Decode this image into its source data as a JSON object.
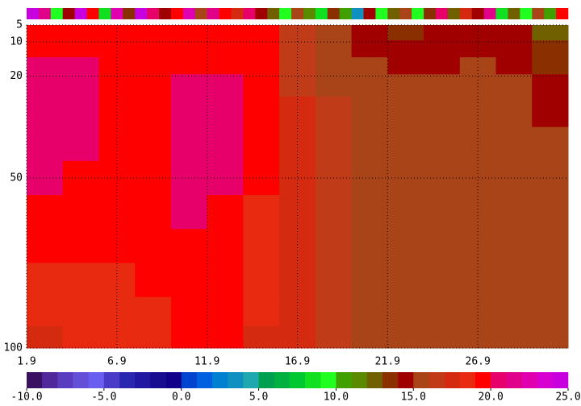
{
  "chart_data": {
    "type": "contour",
    "x": [
      2.9,
      4.9,
      6.9,
      8.9,
      10.9,
      12.9,
      14.9,
      16.9,
      18.9,
      20.9,
      22.9,
      24.9,
      26.9,
      28.9,
      30.9
    ],
    "y": [
      7,
      12,
      17,
      22,
      30,
      40,
      50,
      60,
      70,
      80,
      90,
      97
    ],
    "z": [
      [
        19.5,
        19.5,
        19.5,
        19.4,
        19.4,
        19.3,
        19.2,
        16.5,
        15.5,
        14.5,
        13.8,
        14.2,
        14.6,
        14.0,
        12.5
      ],
      [
        19.6,
        19.6,
        19.5,
        19.4,
        19.4,
        19.3,
        19.2,
        16.4,
        15.6,
        14.6,
        14.2,
        14.4,
        14.8,
        14.3,
        13.2
      ],
      [
        20.2,
        20.1,
        19.6,
        19.5,
        19.6,
        19.5,
        19.3,
        16.6,
        15.7,
        15.2,
        14.7,
        14.8,
        15.1,
        14.6,
        13.8
      ],
      [
        20.3,
        20.2,
        19.7,
        19.6,
        20.1,
        20.2,
        19.3,
        16.8,
        15.8,
        15.4,
        15.2,
        15.3,
        15.4,
        15.2,
        14.3
      ],
      [
        20.4,
        20.2,
        19.6,
        19.6,
        20.3,
        20.3,
        19.2,
        17.1,
        16.2,
        15.6,
        15.5,
        15.6,
        15.6,
        15.4,
        14.6
      ],
      [
        20.3,
        20.1,
        19.5,
        19.6,
        20.4,
        20.2,
        19.1,
        17.2,
        16.3,
        15.7,
        15.6,
        15.6,
        15.7,
        15.6,
        15.3
      ],
      [
        20.1,
        19.8,
        19.4,
        19.6,
        20.3,
        20.1,
        19.0,
        17.3,
        16.4,
        15.6,
        15.5,
        15.6,
        15.8,
        15.6,
        15.4
      ],
      [
        19.4,
        19.4,
        19.3,
        19.5,
        20.2,
        19.6,
        18.4,
        17.2,
        16.4,
        15.6,
        15.5,
        15.5,
        15.6,
        15.5,
        15.3
      ],
      [
        19.1,
        19.2,
        19.2,
        19.4,
        19.7,
        19.4,
        18.2,
        17.1,
        16.3,
        15.6,
        15.5,
        15.5,
        15.5,
        15.4,
        15.2
      ],
      [
        18.7,
        18.6,
        18.8,
        19.2,
        19.4,
        19.2,
        18.1,
        17.0,
        16.3,
        15.6,
        15.5,
        15.5,
        15.5,
        15.4,
        15.2
      ],
      [
        18.6,
        18.6,
        18.6,
        18.9,
        19.2,
        19.1,
        18.0,
        17.0,
        16.3,
        15.5,
        15.5,
        15.5,
        15.4,
        15.3,
        15.2
      ],
      [
        17.5,
        18.5,
        18.5,
        18.7,
        19.0,
        19.0,
        17.9,
        17.0,
        16.2,
        15.5,
        15.5,
        15.5,
        15.4,
        15.3,
        15.2
      ]
    ],
    "surface": [
      24.2,
      21.5,
      9.3,
      14.1,
      24.5,
      19.2,
      8.8,
      22.7,
      13.4,
      24.1,
      20.6,
      14.9,
      19.4,
      22.3,
      15.8,
      21.0,
      19.6,
      17.2,
      20.8,
      14.2,
      12.1,
      9.4,
      15.1,
      11.3,
      8.6,
      13.2,
      10.4,
      3.8,
      14.6,
      9.1,
      12.5,
      15.3,
      9.6,
      13.7,
      20.4,
      12.2,
      17.9,
      14.3,
      21.2,
      8.9,
      12.8,
      9.7,
      15.4,
      10.8,
      19.1
    ],
    "xlim": [
      1.9,
      31.9
    ],
    "xticks": [
      1.9,
      6.9,
      11.9,
      16.9,
      21.9,
      26.9
    ],
    "ylim": [
      5,
      100
    ],
    "yticks": [
      5,
      10,
      20,
      50,
      100
    ],
    "y_inverted": true,
    "grid": true,
    "clim": [
      -10,
      25
    ],
    "colormap": [
      "#3a1060",
      "#50289a",
      "#5a3cc0",
      "#6450d8",
      "#6a5ef0",
      "#4a3ac8",
      "#2a28b0",
      "#2018a0",
      "#180c90",
      "#10008a",
      "#0044d0",
      "#0060e0",
      "#0080d0",
      "#1090c0",
      "#20a8b0",
      "#00a050",
      "#00b040",
      "#00c830",
      "#10e020",
      "#20ff20",
      "#40a000",
      "#5a8a00",
      "#706000",
      "#8a3000",
      "#a00000",
      "#a84418",
      "#c03c18",
      "#d42a10",
      "#e82a10",
      "#ff0000",
      "#e8006a",
      "#e0008a",
      "#e000b0",
      "#d800d0",
      "#c800e0"
    ],
    "cticks": [
      {
        "value": -10,
        "label": "-10.0"
      },
      {
        "value": -5,
        "label": "-5.0"
      },
      {
        "value": 0,
        "label": "0.0"
      },
      {
        "value": 5,
        "label": "5.0"
      },
      {
        "value": 10,
        "label": "10.0"
      },
      {
        "value": 15,
        "label": "15.0"
      },
      {
        "value": 20,
        "label": "20.0"
      },
      {
        "value": 25,
        "label": "25.0"
      }
    ]
  }
}
